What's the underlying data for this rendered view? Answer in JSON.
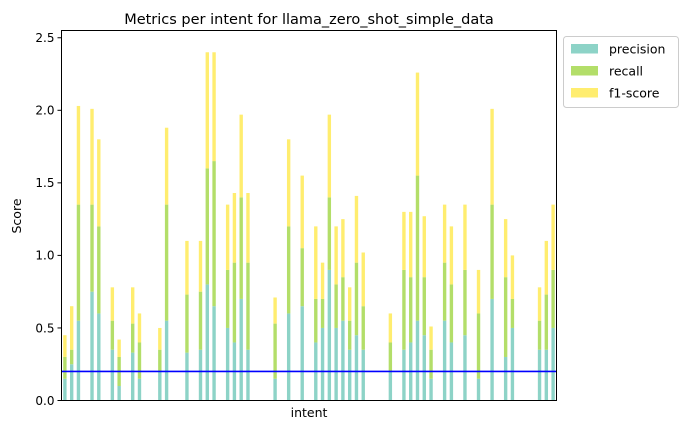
{
  "chart_data": {
    "type": "bar",
    "stacked": true,
    "title": "Metrics per intent for llama_zero_shot_simple_data",
    "xlabel": "intent",
    "ylabel": "Score",
    "ylim": [
      0,
      2.55
    ],
    "yticks": [
      0.0,
      0.5,
      1.0,
      1.5,
      2.0,
      2.5
    ],
    "ytick_labels": [
      "0.0",
      "0.5",
      "1.0",
      "1.5",
      "2.0",
      "2.5"
    ],
    "grid": false,
    "legend": "upper-right-outside",
    "reference_line": {
      "value": 0.2,
      "color": "#0000ff"
    },
    "series": [
      {
        "name": "precision",
        "color": "#8dd3c7",
        "values": [
          0.15,
          0.25,
          0.55,
          0,
          0.75,
          0.6,
          0,
          0.35,
          0.1,
          0,
          0.33,
          0.15,
          0,
          0,
          0.2,
          0.55,
          0,
          0,
          0.33,
          0,
          0.35,
          0.8,
          0.65,
          0,
          0.5,
          0.4,
          0.7,
          0.35,
          0,
          0,
          0,
          0.15,
          0,
          0.6,
          0,
          0.65,
          0,
          0.4,
          0.5,
          0.9,
          0.5,
          0.55,
          0.35,
          0.45,
          0.35,
          0,
          0,
          0,
          0.2,
          0,
          0.35,
          0.4,
          0.55,
          0.45,
          0.15,
          0,
          0.55,
          0.4,
          0,
          0.45,
          0,
          0.15,
          0,
          0.7,
          0,
          0.3,
          0.5,
          0,
          0,
          0,
          0.35,
          0.35,
          0.5
        ],
        "labels": []
      },
      {
        "name": "recall",
        "color": "#b3de69",
        "values": [
          0.15,
          0.1,
          0.8,
          0,
          0.6,
          0.6,
          0,
          0.2,
          0.2,
          0,
          0.2,
          0.25,
          0,
          0,
          0.15,
          0.8,
          0,
          0,
          0.4,
          0,
          0.4,
          0.8,
          1.0,
          0,
          0.4,
          0.55,
          0.7,
          0.6,
          0,
          0,
          0,
          0.38,
          0,
          0.6,
          0,
          0.4,
          0,
          0.3,
          0.2,
          0.5,
          0.3,
          0.3,
          0.2,
          0.5,
          0.3,
          0,
          0,
          0,
          0.2,
          0,
          0.55,
          0.45,
          1.0,
          0.4,
          0.2,
          0,
          0.4,
          0.4,
          0,
          0.45,
          0,
          0.45,
          0,
          0.65,
          0,
          0.55,
          0.2,
          0,
          0,
          0,
          0.2,
          0.38,
          0.4
        ],
        "labels": []
      },
      {
        "name": "f1-score",
        "color": "#ffed6f",
        "values": [
          0.15,
          0.3,
          0.68,
          0,
          0.66,
          0.6,
          0,
          0.23,
          0.12,
          0,
          0.25,
          0.2,
          0,
          0,
          0.15,
          0.53,
          0,
          0,
          0.37,
          0,
          0.35,
          0.8,
          0.75,
          0,
          0.45,
          0.48,
          0.57,
          0.48,
          0,
          0,
          0,
          0.18,
          0,
          0.6,
          0,
          0.5,
          0,
          0.5,
          0.25,
          0.57,
          0.4,
          0.4,
          0.23,
          0.46,
          0.37,
          0,
          0,
          0,
          0.2,
          0,
          0.4,
          0.45,
          0.71,
          0.42,
          0.16,
          0,
          0.4,
          0.4,
          0,
          0.45,
          0,
          0.3,
          0,
          0.66,
          0,
          0.4,
          0.3,
          0,
          0,
          0,
          0.23,
          0.37,
          0.45
        ],
        "labels": []
      }
    ]
  }
}
